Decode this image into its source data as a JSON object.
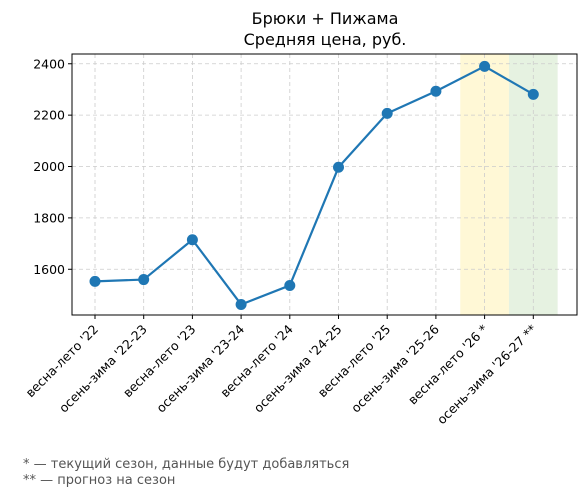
{
  "chart_data": {
    "type": "line",
    "title": "Брюки + Пижама",
    "subtitle": "Средняя цена, руб.",
    "xlabel": "",
    "ylabel": "",
    "categories": [
      "весна-лето '22",
      "осень-зима '22-23",
      "весна-лето '23",
      "осень-зима '23-24",
      "весна-лето '24",
      "осень-зима '24-25",
      "весна-лето '25",
      "осень-зима '25-26",
      "весна-лето '26 *",
      "осень-зима '26-27 **"
    ],
    "series": [
      {
        "values": [
          1553,
          1560,
          1715,
          1463,
          1537,
          1997,
          2207,
          2293,
          2390,
          2281
        ]
      }
    ],
    "ylim": [
      1422,
      2438
    ],
    "yticks": [
      1600,
      1800,
      2000,
      2200,
      2400
    ],
    "grid": true,
    "line_color": "#1f77b4",
    "highlight_bands": [
      {
        "category_index": 8,
        "color": "#fff8d6"
      },
      {
        "category_index": 9,
        "color": "#e6f2e1"
      }
    ]
  },
  "footnotes": [
    "* — текущий сезон, данные будут добавляться",
    "** — прогноз на сезон"
  ]
}
